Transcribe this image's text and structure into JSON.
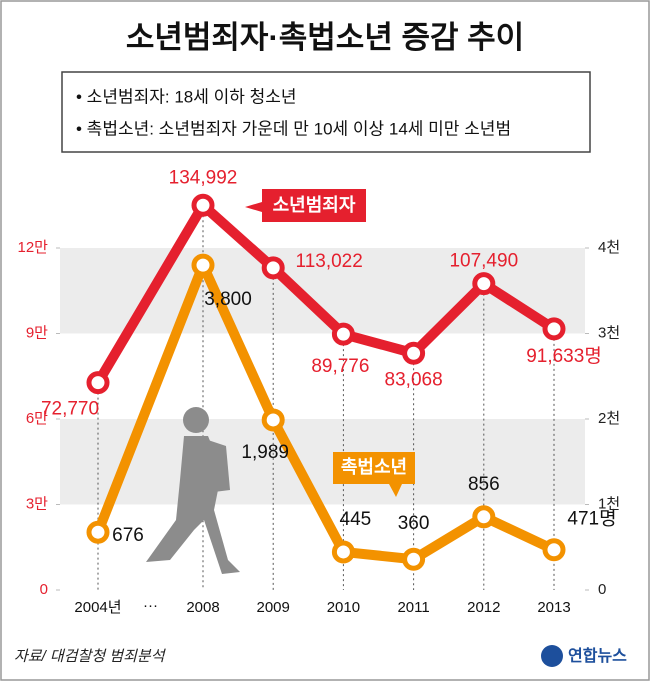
{
  "chart_data": {
    "type": "line",
    "title": "소년범죄자·촉법소년 증감 추이",
    "notes": [
      "• 소년범죄자: 18세 이하 청소년",
      "• 촉법소년: 소년범죄자 가운데 만 10세 이상 14세 미만 소년범"
    ],
    "categories": [
      "2004년",
      "2008",
      "2009",
      "2010",
      "2011",
      "2012",
      "2013"
    ],
    "gap_label": "···",
    "ylim": [
      0,
      150000
    ],
    "yticks": [
      0,
      {
        "value": 30000,
        "label": "3만"
      },
      {
        "value": 60000,
        "label": "6만"
      },
      {
        "value": 90000,
        "label": "9만"
      },
      {
        "value": 120000,
        "label": "12만"
      }
    ],
    "y2lim": [
      0,
      5000
    ],
    "y2ticks": [
      0,
      {
        "value": 1000,
        "label": "1천"
      },
      {
        "value": 2000,
        "label": "2천"
      },
      {
        "value": 3000,
        "label": "3천"
      },
      {
        "value": 4000,
        "label": "4천"
      }
    ],
    "grid": true,
    "series": [
      {
        "name": "소년범죄자",
        "color": "#e5202e",
        "axis": "y",
        "values": [
          72770,
          134992,
          113022,
          89776,
          83068,
          107490,
          91633
        ],
        "value_labels": [
          "72,770",
          "134,992",
          "113,022",
          "89,776",
          "83,068",
          "107,490",
          "91,633명"
        ]
      },
      {
        "name": "촉법소년",
        "color": "#f39200",
        "axis": "y2",
        "values": [
          676,
          3800,
          1989,
          445,
          360,
          856,
          471
        ],
        "value_labels": [
          "676",
          "3,800",
          "1,989",
          "445",
          "360",
          "856",
          "471명"
        ]
      }
    ],
    "source": "자료/ 대검찰청 범죄분석"
  },
  "brand": "연합뉴스"
}
